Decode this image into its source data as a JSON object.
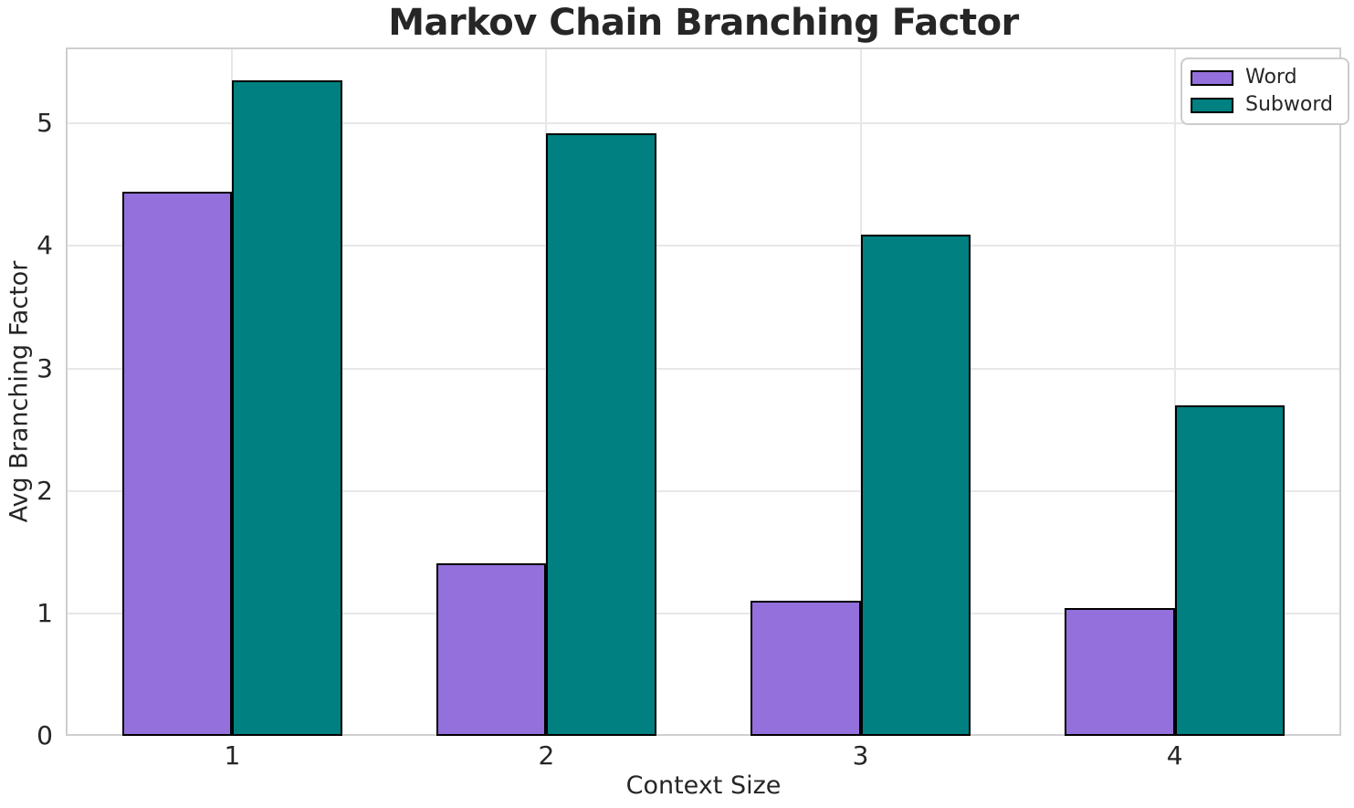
{
  "chart_data": {
    "type": "bar",
    "title": "Markov Chain Branching Factor",
    "xlabel": "Context Size",
    "ylabel": "Avg Branching Factor",
    "categories": [
      "1",
      "2",
      "3",
      "4"
    ],
    "series": [
      {
        "name": "Word",
        "color": "#9370DB",
        "values": [
          4.44,
          1.41,
          1.1,
          1.04
        ]
      },
      {
        "name": "Subword",
        "color": "#008080",
        "values": [
          5.35,
          4.92,
          4.09,
          2.7
        ]
      }
    ],
    "ylim": [
      0,
      5.62
    ],
    "yticks": [
      0,
      1,
      2,
      3,
      4,
      5
    ],
    "xlim": [
      -0.53,
      3.53
    ],
    "bar_width": 0.35,
    "bar_edge_color": "#000000",
    "grid": true,
    "gridline_color": "#e7e7e7",
    "spine_color": "#cfcfcf",
    "text_color": "#262626",
    "background_color": "#ffffff",
    "legend": {
      "position": "upper right",
      "entries": [
        "Word",
        "Subword"
      ]
    }
  }
}
